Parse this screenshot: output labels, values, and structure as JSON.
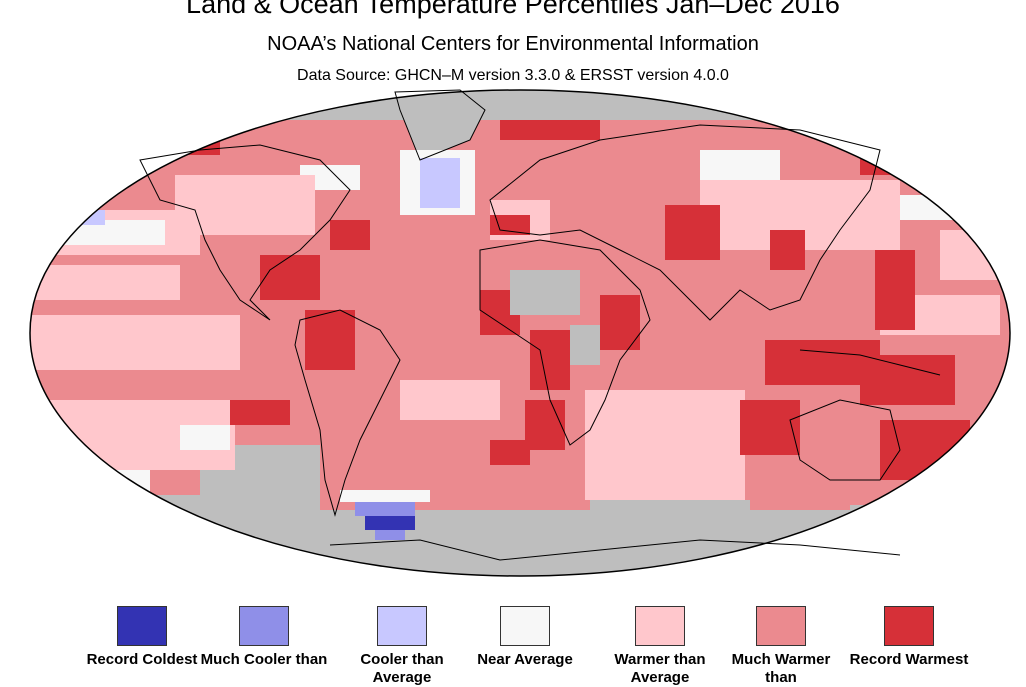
{
  "header": {
    "title": "Land & Ocean Temperature Percentiles Jan–Dec 2016",
    "subtitle": "NOAA’s National Centers for Environmental Information",
    "source": "Data Source: GHCN–M version 3.3.0 & ERSST version 4.0.0"
  },
  "colors": {
    "record_coldest": "#3333b3",
    "much_cooler": "#8f8fe8",
    "cooler": "#c8c8ff",
    "near_average": "#f7f7f7",
    "warmer": "#ffc7cc",
    "much_warmer": "#eb8a8f",
    "record_warmest": "#d63038",
    "no_data": "#bebebe",
    "coastline": "#000000"
  },
  "legend": {
    "items": [
      {
        "key": "record_coldest",
        "label": "Record Coldest"
      },
      {
        "key": "much_cooler",
        "label": "Much Cooler than"
      },
      {
        "key": "cooler",
        "label": "Cooler than Average"
      },
      {
        "key": "near_average",
        "label": "Near Average"
      },
      {
        "key": "warmer",
        "label": "Warmer than Average"
      },
      {
        "key": "much_warmer",
        "label": "Much Warmer than"
      },
      {
        "key": "record_warmest",
        "label": "Record Warmest"
      }
    ]
  },
  "map": {
    "projection": "robinson"
  }
}
